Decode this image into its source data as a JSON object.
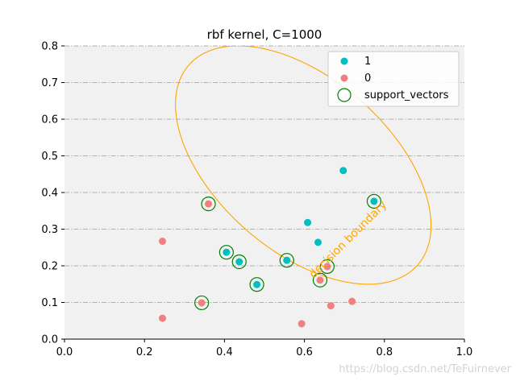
{
  "chart_data": {
    "type": "scatter",
    "title": "rbf kernel, C=1000",
    "xlabel": "",
    "ylabel": "",
    "xlim": [
      0,
      1
    ],
    "ylim": [
      0,
      0.8
    ],
    "xticks": [
      "0.0",
      "0.2",
      "0.4",
      "0.6",
      "0.8",
      "1.0"
    ],
    "yticks": [
      "0.0",
      "0.1",
      "0.2",
      "0.3",
      "0.4",
      "0.5",
      "0.6",
      "0.7",
      "0.8"
    ],
    "grid": "horizontal dash-dot",
    "background": "#f1f1f1",
    "legend_position": "top-right",
    "series": [
      {
        "name": "1",
        "color": "#00bfbf",
        "points": [
          {
            "x": 0.405,
            "y": 0.237
          },
          {
            "x": 0.437,
            "y": 0.211
          },
          {
            "x": 0.481,
            "y": 0.149
          },
          {
            "x": 0.556,
            "y": 0.215
          },
          {
            "x": 0.608,
            "y": 0.318
          },
          {
            "x": 0.634,
            "y": 0.264
          },
          {
            "x": 0.697,
            "y": 0.46
          },
          {
            "x": 0.774,
            "y": 0.376
          }
        ]
      },
      {
        "name": "0",
        "color": "#f08080",
        "points": [
          {
            "x": 0.245,
            "y": 0.267
          },
          {
            "x": 0.245,
            "y": 0.057
          },
          {
            "x": 0.343,
            "y": 0.099
          },
          {
            "x": 0.36,
            "y": 0.369
          },
          {
            "x": 0.593,
            "y": 0.042
          },
          {
            "x": 0.639,
            "y": 0.161
          },
          {
            "x": 0.657,
            "y": 0.198
          },
          {
            "x": 0.666,
            "y": 0.091
          },
          {
            "x": 0.719,
            "y": 0.103
          }
        ]
      },
      {
        "name": "support_vectors",
        "color": "#008000",
        "points": [
          {
            "x": 0.36,
            "y": 0.369
          },
          {
            "x": 0.343,
            "y": 0.099
          },
          {
            "x": 0.405,
            "y": 0.237
          },
          {
            "x": 0.437,
            "y": 0.211
          },
          {
            "x": 0.481,
            "y": 0.149
          },
          {
            "x": 0.556,
            "y": 0.215
          },
          {
            "x": 0.639,
            "y": 0.161
          },
          {
            "x": 0.657,
            "y": 0.198
          },
          {
            "x": 0.774,
            "y": 0.376
          }
        ]
      }
    ],
    "decision_boundary": {
      "shape": "ellipse",
      "color": "#ffa500",
      "center": {
        "x": 0.597,
        "y": 0.475
      },
      "semi_axes": [
        0.226,
        0.396
      ],
      "rotation_deg": 44,
      "label": "decision boundary",
      "label_position": {
        "x": 0.715,
        "y": 0.265
      }
    }
  },
  "watermark": "https://blog.csdn.net/TeFuirnever"
}
